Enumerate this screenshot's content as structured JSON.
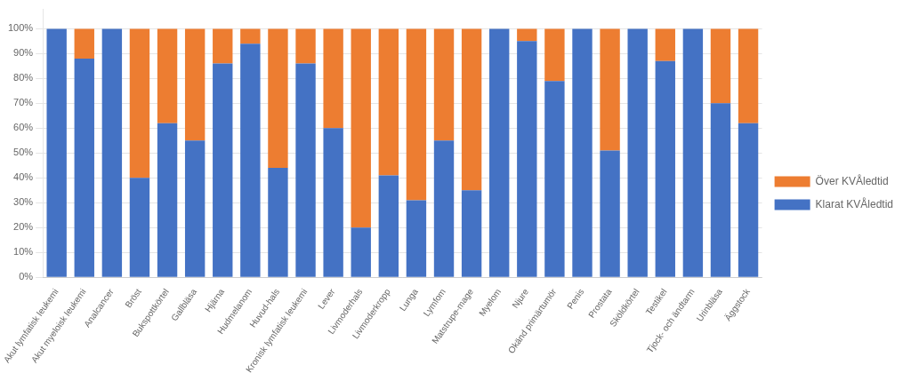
{
  "chart_data": {
    "type": "bar",
    "stacked": true,
    "categories": [
      "Akut lymfatisk leukemi",
      "Akut myeloisk leukemi",
      "Analcancer",
      "Bröst",
      "Bukspottkörtel",
      "Gallbläsa",
      "Hjärna",
      "Hudmelanom",
      "Huvud-hals",
      "Kronisk lymfatisk leukemi",
      "Lever",
      "Livmoderhals",
      "Livmoderkropp",
      "Lunga",
      "Lymfom",
      "Matstrupe-mage",
      "Myelom",
      "Njure",
      "Okänd primärtumör",
      "Penis",
      "Prostata",
      "Sköldkörtel",
      "Testikel",
      "Tjock- och ändtarm",
      "Urinbläsa",
      "Äggstock"
    ],
    "series": [
      {
        "name": "Klarat KVÅledtid",
        "color": "#4472C4",
        "values": [
          100,
          88,
          100,
          40,
          62,
          55,
          86,
          94,
          44,
          86,
          60,
          20,
          41,
          31,
          55,
          35,
          100,
          95,
          79,
          100,
          51,
          100,
          87,
          100,
          70,
          62
        ]
      },
      {
        "name": "Över KVÅledtid",
        "color": "#ED7D31",
        "values": [
          0,
          12,
          0,
          60,
          38,
          45,
          14,
          6,
          56,
          14,
          40,
          80,
          59,
          69,
          45,
          65,
          0,
          5,
          21,
          0,
          49,
          0,
          13,
          0,
          30,
          38
        ]
      }
    ],
    "ylim": [
      0,
      108
    ],
    "yticks": [
      {
        "value": 0,
        "label": "0%"
      },
      {
        "value": 10,
        "label": "10%"
      },
      {
        "value": 20,
        "label": "20%"
      },
      {
        "value": 30,
        "label": "30%"
      },
      {
        "value": 40,
        "label": "40%"
      },
      {
        "value": 50,
        "label": "50%"
      },
      {
        "value": 60,
        "label": "60%"
      },
      {
        "value": 70,
        "label": "70%"
      },
      {
        "value": 80,
        "label": "80%"
      },
      {
        "value": 90,
        "label": "90%"
      },
      {
        "value": 100,
        "label": "100%"
      }
    ],
    "grid": true,
    "legend": "right"
  }
}
